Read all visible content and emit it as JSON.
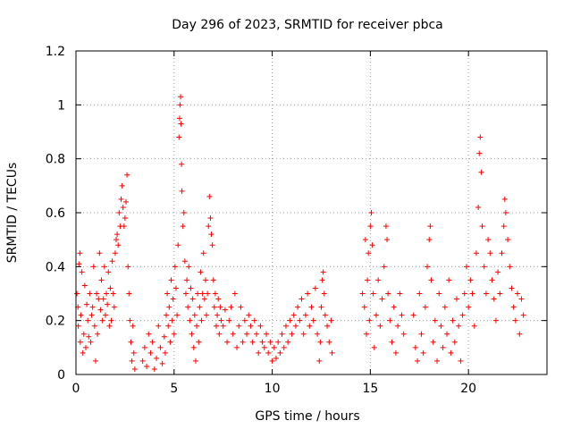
{
  "chart_data": {
    "type": "scatter",
    "title": "Day 296 of 2023, SRMTID for receiver pbca",
    "xlabel": "GPS time / hours",
    "ylabel": "SRMTID / TECUs",
    "xlim": [
      0,
      24
    ],
    "ylim": [
      0,
      1.2
    ],
    "xticks": [
      0,
      5,
      10,
      15,
      20
    ],
    "xtick_labels": [
      "0",
      "5",
      "10",
      "15",
      "20"
    ],
    "yticks": [
      0,
      0.2,
      0.4,
      0.6,
      0.8,
      1.0,
      1.2
    ],
    "ytick_labels": [
      "0",
      "0.2",
      "0.4",
      "0.6",
      "0.8",
      "1",
      "1.2"
    ],
    "grid": true,
    "marker": "+",
    "color": "#ff0000",
    "series": [
      {
        "name": "SRMTID",
        "points": [
          [
            0.05,
            0.3
          ],
          [
            0.1,
            0.25
          ],
          [
            0.12,
            0.18
          ],
          [
            0.15,
            0.41
          ],
          [
            0.2,
            0.45
          ],
          [
            0.22,
            0.12
          ],
          [
            0.25,
            0.22
          ],
          [
            0.3,
            0.38
          ],
          [
            0.35,
            0.08
          ],
          [
            0.4,
            0.15
          ],
          [
            0.45,
            0.33
          ],
          [
            0.5,
            0.1
          ],
          [
            0.55,
            0.26
          ],
          [
            0.6,
            0.2
          ],
          [
            0.65,
            0.14
          ],
          [
            0.7,
            0.3
          ],
          [
            0.75,
            0.12
          ],
          [
            0.8,
            0.22
          ],
          [
            0.85,
            0.25
          ],
          [
            0.9,
            0.4
          ],
          [
            0.95,
            0.18
          ],
          [
            1.0,
            0.05
          ],
          [
            1.05,
            0.3
          ],
          [
            1.1,
            0.15
          ],
          [
            1.15,
            0.28
          ],
          [
            1.2,
            0.45
          ],
          [
            1.25,
            0.24
          ],
          [
            1.3,
            0.35
          ],
          [
            1.35,
            0.2
          ],
          [
            1.4,
            0.28
          ],
          [
            1.45,
            0.4
          ],
          [
            1.5,
            0.22
          ],
          [
            1.55,
            0.3
          ],
          [
            1.6,
            0.26
          ],
          [
            1.65,
            0.38
          ],
          [
            1.7,
            0.18
          ],
          [
            1.75,
            0.32
          ],
          [
            1.8,
            0.2
          ],
          [
            1.85,
            0.42
          ],
          [
            1.9,
            0.3
          ],
          [
            1.95,
            0.25
          ],
          [
            2.0,
            0.45
          ],
          [
            2.05,
            0.5
          ],
          [
            2.1,
            0.52
          ],
          [
            2.15,
            0.48
          ],
          [
            2.2,
            0.6
          ],
          [
            2.25,
            0.55
          ],
          [
            2.3,
            0.65
          ],
          [
            2.35,
            0.7
          ],
          [
            2.4,
            0.62
          ],
          [
            2.45,
            0.55
          ],
          [
            2.5,
            0.58
          ],
          [
            2.55,
            0.64
          ],
          [
            2.6,
            0.74
          ],
          [
            2.65,
            0.4
          ],
          [
            2.7,
            0.3
          ],
          [
            2.75,
            0.2
          ],
          [
            2.8,
            0.12
          ],
          [
            2.85,
            0.05
          ],
          [
            2.9,
            0.18
          ],
          [
            2.95,
            0.08
          ],
          [
            3.0,
            0.02
          ],
          [
            3.4,
            0.05
          ],
          [
            3.5,
            0.1
          ],
          [
            3.6,
            0.03
          ],
          [
            3.7,
            0.15
          ],
          [
            3.8,
            0.08
          ],
          [
            3.9,
            0.12
          ],
          [
            4.0,
            0.02
          ],
          [
            4.1,
            0.06
          ],
          [
            4.2,
            0.18
          ],
          [
            4.3,
            0.1
          ],
          [
            4.4,
            0.04
          ],
          [
            4.5,
            0.14
          ],
          [
            4.55,
            0.08
          ],
          [
            4.6,
            0.22
          ],
          [
            4.65,
            0.3
          ],
          [
            4.7,
            0.18
          ],
          [
            4.75,
            0.25
          ],
          [
            4.8,
            0.12
          ],
          [
            4.85,
            0.35
          ],
          [
            4.9,
            0.2
          ],
          [
            4.95,
            0.28
          ],
          [
            5.0,
            0.15
          ],
          [
            5.05,
            0.4
          ],
          [
            5.1,
            0.32
          ],
          [
            5.15,
            0.22
          ],
          [
            5.2,
            0.48
          ],
          [
            5.25,
            0.88
          ],
          [
            5.28,
            0.95
          ],
          [
            5.3,
            1.0
          ],
          [
            5.33,
            1.03
          ],
          [
            5.35,
            0.93
          ],
          [
            5.38,
            0.78
          ],
          [
            5.4,
            0.68
          ],
          [
            5.45,
            0.55
          ],
          [
            5.5,
            0.6
          ],
          [
            5.55,
            0.42
          ],
          [
            5.6,
            0.3
          ],
          [
            5.65,
            0.35
          ],
          [
            5.7,
            0.25
          ],
          [
            5.75,
            0.4
          ],
          [
            5.8,
            0.2
          ],
          [
            5.85,
            0.32
          ],
          [
            5.9,
            0.15
          ],
          [
            5.95,
            0.28
          ],
          [
            6.0,
            0.1
          ],
          [
            6.05,
            0.22
          ],
          [
            6.1,
            0.05
          ],
          [
            6.15,
            0.18
          ],
          [
            6.2,
            0.3
          ],
          [
            6.25,
            0.12
          ],
          [
            6.3,
            0.25
          ],
          [
            6.35,
            0.38
          ],
          [
            6.4,
            0.2
          ],
          [
            6.45,
            0.3
          ],
          [
            6.5,
            0.45
          ],
          [
            6.55,
            0.28
          ],
          [
            6.6,
            0.35
          ],
          [
            6.65,
            0.22
          ],
          [
            6.7,
            0.3
          ],
          [
            6.75,
            0.55
          ],
          [
            6.8,
            0.66
          ],
          [
            6.85,
            0.58
          ],
          [
            6.9,
            0.52
          ],
          [
            6.95,
            0.48
          ],
          [
            7.0,
            0.35
          ],
          [
            7.05,
            0.25
          ],
          [
            7.1,
            0.3
          ],
          [
            7.15,
            0.18
          ],
          [
            7.2,
            0.22
          ],
          [
            7.25,
            0.28
          ],
          [
            7.3,
            0.15
          ],
          [
            7.35,
            0.25
          ],
          [
            7.4,
            0.2
          ],
          [
            7.5,
            0.18
          ],
          [
            7.6,
            0.24
          ],
          [
            7.7,
            0.12
          ],
          [
            7.8,
            0.2
          ],
          [
            7.9,
            0.25
          ],
          [
            8.0,
            0.15
          ],
          [
            8.1,
            0.3
          ],
          [
            8.2,
            0.1
          ],
          [
            8.3,
            0.18
          ],
          [
            8.4,
            0.25
          ],
          [
            8.5,
            0.12
          ],
          [
            8.6,
            0.2
          ],
          [
            8.7,
            0.15
          ],
          [
            8.8,
            0.22
          ],
          [
            8.9,
            0.18
          ],
          [
            9.0,
            0.12
          ],
          [
            9.1,
            0.2
          ],
          [
            9.2,
            0.15
          ],
          [
            9.3,
            0.08
          ],
          [
            9.4,
            0.18
          ],
          [
            9.5,
            0.12
          ],
          [
            9.6,
            0.1
          ],
          [
            9.7,
            0.15
          ],
          [
            9.8,
            0.08
          ],
          [
            9.9,
            0.12
          ],
          [
            10.0,
            0.05
          ],
          [
            10.1,
            0.1
          ],
          [
            10.2,
            0.06
          ],
          [
            10.3,
            0.12
          ],
          [
            10.4,
            0.08
          ],
          [
            10.5,
            0.15
          ],
          [
            10.6,
            0.1
          ],
          [
            10.7,
            0.18
          ],
          [
            10.8,
            0.12
          ],
          [
            10.9,
            0.2
          ],
          [
            11.0,
            0.15
          ],
          [
            11.1,
            0.22
          ],
          [
            11.2,
            0.18
          ],
          [
            11.3,
            0.25
          ],
          [
            11.4,
            0.2
          ],
          [
            11.5,
            0.28
          ],
          [
            11.6,
            0.15
          ],
          [
            11.7,
            0.22
          ],
          [
            11.8,
            0.3
          ],
          [
            11.9,
            0.18
          ],
          [
            12.0,
            0.25
          ],
          [
            12.1,
            0.2
          ],
          [
            12.2,
            0.32
          ],
          [
            12.3,
            0.15
          ],
          [
            12.4,
            0.05
          ],
          [
            12.45,
            0.12
          ],
          [
            12.5,
            0.25
          ],
          [
            12.55,
            0.35
          ],
          [
            12.6,
            0.38
          ],
          [
            12.65,
            0.3
          ],
          [
            12.7,
            0.22
          ],
          [
            12.8,
            0.18
          ],
          [
            12.9,
            0.12
          ],
          [
            13.0,
            0.2
          ],
          [
            13.05,
            0.08
          ],
          [
            14.6,
            0.3
          ],
          [
            14.7,
            0.25
          ],
          [
            14.75,
            0.5
          ],
          [
            14.8,
            0.15
          ],
          [
            14.85,
            0.35
          ],
          [
            14.9,
            0.45
          ],
          [
            14.95,
            0.2
          ],
          [
            15.0,
            0.55
          ],
          [
            15.05,
            0.6
          ],
          [
            15.1,
            0.48
          ],
          [
            15.15,
            0.3
          ],
          [
            15.2,
            0.1
          ],
          [
            15.3,
            0.22
          ],
          [
            15.4,
            0.35
          ],
          [
            15.5,
            0.18
          ],
          [
            15.6,
            0.28
          ],
          [
            15.7,
            0.4
          ],
          [
            15.8,
            0.55
          ],
          [
            15.85,
            0.5
          ],
          [
            15.9,
            0.3
          ],
          [
            16.0,
            0.2
          ],
          [
            16.1,
            0.12
          ],
          [
            16.2,
            0.25
          ],
          [
            16.3,
            0.08
          ],
          [
            16.4,
            0.18
          ],
          [
            16.5,
            0.3
          ],
          [
            16.6,
            0.22
          ],
          [
            16.7,
            0.15
          ],
          [
            17.2,
            0.22
          ],
          [
            17.3,
            0.1
          ],
          [
            17.4,
            0.05
          ],
          [
            17.5,
            0.3
          ],
          [
            17.6,
            0.15
          ],
          [
            17.7,
            0.08
          ],
          [
            17.8,
            0.25
          ],
          [
            17.9,
            0.4
          ],
          [
            18.0,
            0.5
          ],
          [
            18.05,
            0.55
          ],
          [
            18.1,
            0.35
          ],
          [
            18.2,
            0.12
          ],
          [
            18.3,
            0.2
          ],
          [
            18.4,
            0.05
          ],
          [
            18.5,
            0.3
          ],
          [
            18.6,
            0.18
          ],
          [
            18.7,
            0.1
          ],
          [
            18.8,
            0.25
          ],
          [
            18.9,
            0.15
          ],
          [
            19.0,
            0.35
          ],
          [
            19.1,
            0.08
          ],
          [
            19.2,
            0.2
          ],
          [
            19.3,
            0.12
          ],
          [
            19.4,
            0.28
          ],
          [
            19.5,
            0.18
          ],
          [
            19.6,
            0.05
          ],
          [
            19.7,
            0.22
          ],
          [
            19.8,
            0.3
          ],
          [
            19.9,
            0.4
          ],
          [
            20.0,
            0.25
          ],
          [
            20.1,
            0.35
          ],
          [
            20.2,
            0.3
          ],
          [
            20.3,
            0.18
          ],
          [
            20.4,
            0.45
          ],
          [
            20.5,
            0.62
          ],
          [
            20.55,
            0.82
          ],
          [
            20.6,
            0.88
          ],
          [
            20.65,
            0.75
          ],
          [
            20.7,
            0.55
          ],
          [
            20.8,
            0.4
          ],
          [
            20.9,
            0.3
          ],
          [
            21.0,
            0.5
          ],
          [
            21.1,
            0.45
          ],
          [
            21.2,
            0.35
          ],
          [
            21.3,
            0.28
          ],
          [
            21.4,
            0.2
          ],
          [
            21.5,
            0.38
          ],
          [
            21.6,
            0.3
          ],
          [
            21.7,
            0.45
          ],
          [
            21.8,
            0.55
          ],
          [
            21.85,
            0.65
          ],
          [
            21.9,
            0.6
          ],
          [
            22.0,
            0.5
          ],
          [
            22.1,
            0.4
          ],
          [
            22.2,
            0.32
          ],
          [
            22.3,
            0.25
          ],
          [
            22.4,
            0.2
          ],
          [
            22.5,
            0.3
          ],
          [
            22.6,
            0.15
          ],
          [
            22.7,
            0.28
          ],
          [
            22.8,
            0.22
          ]
        ]
      }
    ]
  }
}
